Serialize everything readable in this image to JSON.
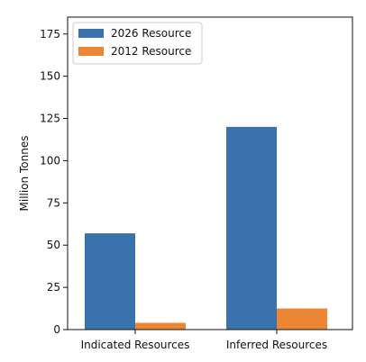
{
  "chart_data": {
    "type": "bar",
    "title": "",
    "xlabel": "",
    "ylabel": "Million Tonnes",
    "categories": [
      "Indicated Resources",
      "Inferred Resources"
    ],
    "series": [
      {
        "name": "2026 Resource",
        "values": [
          57,
          120
        ],
        "color": "#3A72AE"
      },
      {
        "name": "2012 Resource",
        "values": [
          4,
          12.5
        ],
        "color": "#ED8634"
      }
    ],
    "ylim": [
      0,
      185
    ],
    "yticks": [
      0,
      25,
      50,
      75,
      100,
      125,
      150,
      175
    ],
    "grid": false,
    "legend_position": "top-left"
  }
}
